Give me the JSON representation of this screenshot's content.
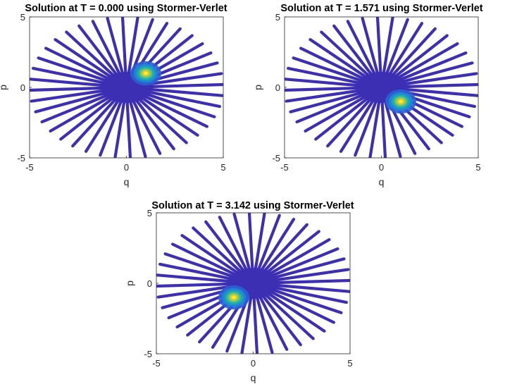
{
  "chart_data": [
    {
      "type": "scatter",
      "title": "Solution at T = 0.000 using Stormer-Verlet",
      "xlabel": "q",
      "ylabel": "p",
      "xlim": [
        -5,
        5
      ],
      "ylim": [
        -5,
        5
      ],
      "xticks": [
        "-5",
        "0",
        "5"
      ],
      "yticks": [
        "-5",
        "0",
        "5"
      ],
      "colormap": "parula",
      "spokes": 40,
      "radial_extent": 5,
      "peak_center": [
        1.0,
        1.0
      ],
      "grid": false
    },
    {
      "type": "scatter",
      "title": "Solution at T = 1.571 using Stormer-Verlet",
      "xlabel": "q",
      "ylabel": "p",
      "xlim": [
        -5,
        5
      ],
      "ylim": [
        -5,
        5
      ],
      "xticks": [
        "-5",
        "0",
        "5"
      ],
      "yticks": [
        "-5",
        "0",
        "5"
      ],
      "colormap": "parula",
      "spokes": 40,
      "radial_extent": 5,
      "peak_center": [
        1.0,
        -1.0
      ],
      "grid": false
    },
    {
      "type": "scatter",
      "title": "Solution at T = 3.142 using Stormer-Verlet",
      "xlabel": "q",
      "ylabel": "p",
      "xlim": [
        -5,
        5
      ],
      "ylim": [
        -5,
        5
      ],
      "xticks": [
        "-5",
        "0",
        "5"
      ],
      "yticks": [
        "-5",
        "0",
        "5"
      ],
      "colormap": "parula",
      "spokes": 40,
      "radial_extent": 5,
      "peak_center": [
        -1.0,
        -1.0
      ],
      "grid": false
    }
  ],
  "colors": {
    "base": "#3d2fb4",
    "axes": "#262626"
  }
}
